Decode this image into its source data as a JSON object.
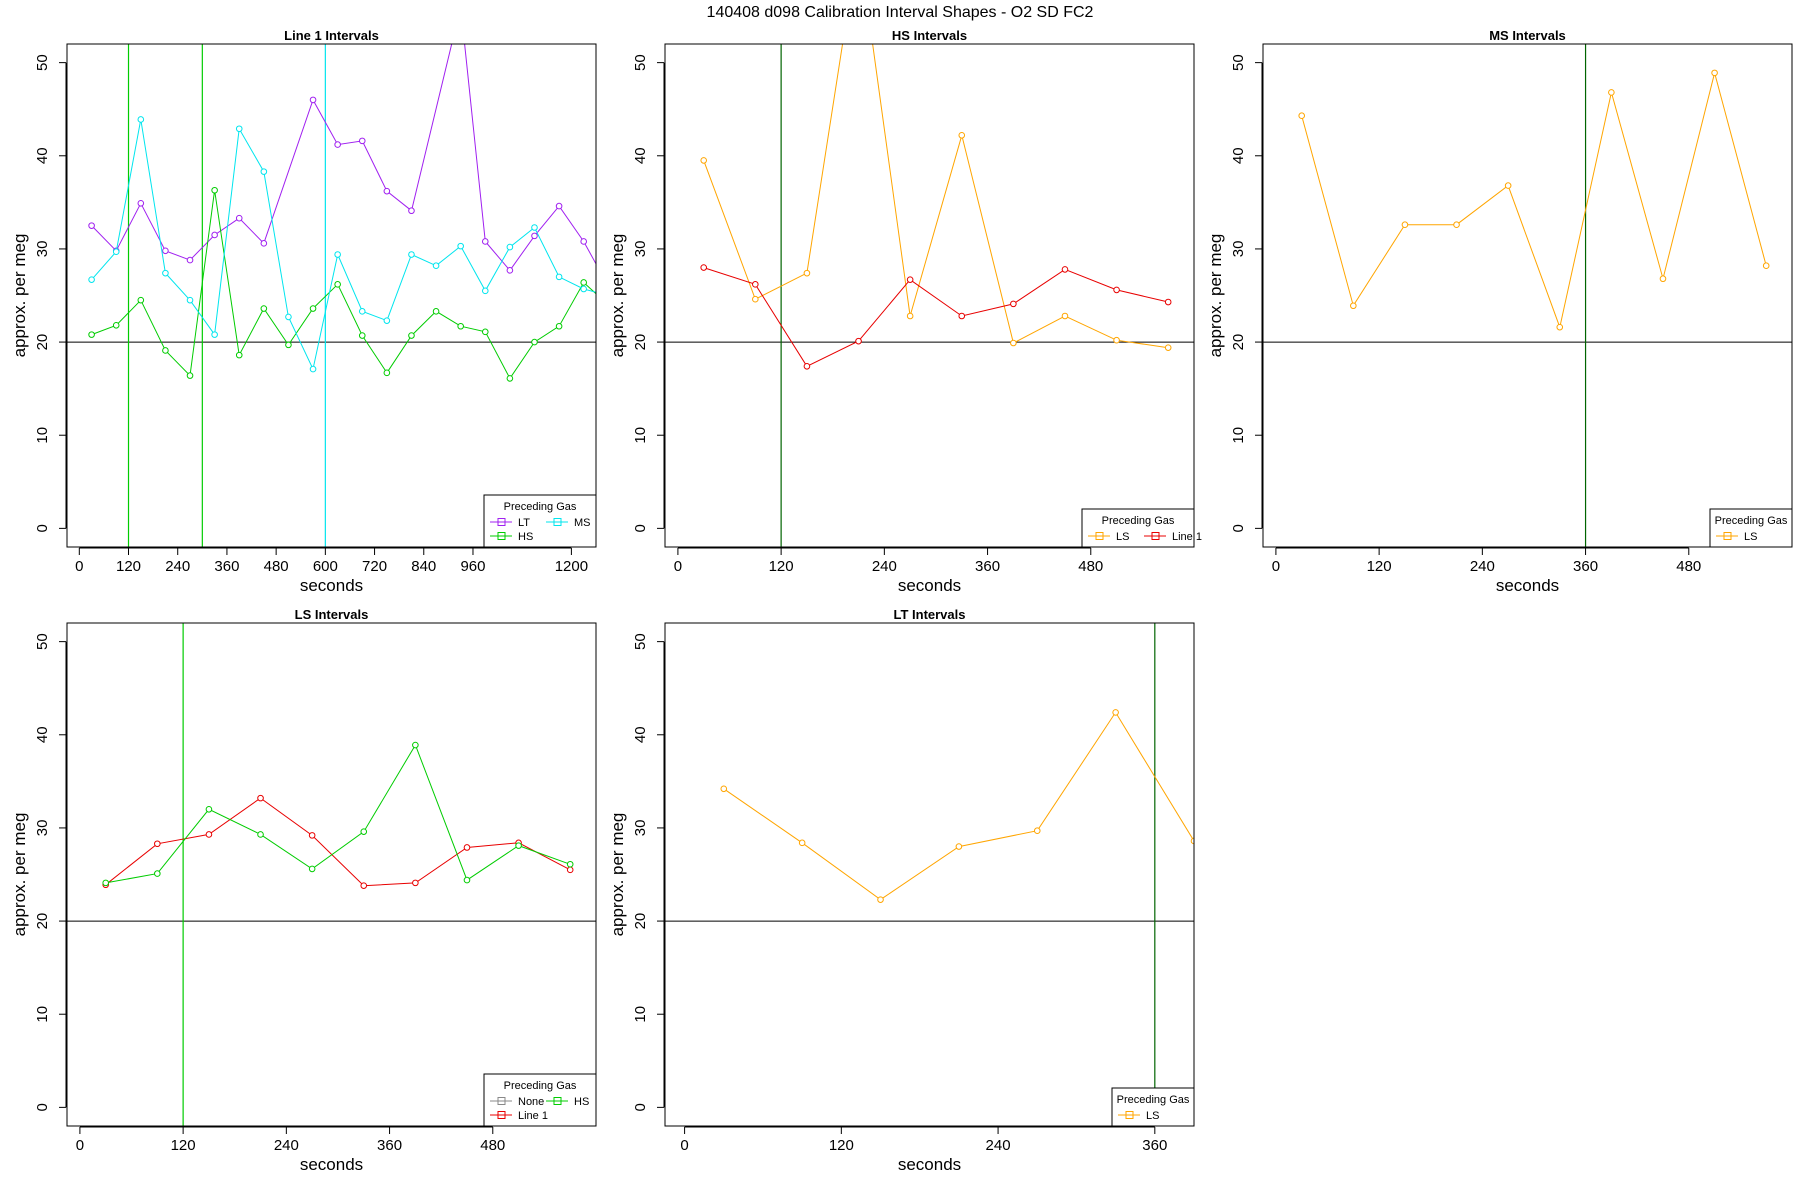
{
  "figure": {
    "title": "140408   d098   Calibration Interval Shapes - O2 SD FC2"
  },
  "colors": {
    "LT": "#A020F0",
    "HS": "#00CC00",
    "MS": "#00E5EE",
    "LS": "#FFA500",
    "Line 1": "#E80000",
    "None": "#888888",
    "vline": "#006400",
    "hline": "#000000"
  },
  "chart_data": [
    {
      "type": "line",
      "title": "Line 1 Intervals",
      "xlabel": "seconds",
      "ylabel": "approx. per meg",
      "xlim": [
        -30,
        1260
      ],
      "ylim": [
        -2,
        52
      ],
      "xticks": [
        0,
        120,
        240,
        360,
        480,
        600,
        720,
        840,
        960,
        1200
      ],
      "yticks": [
        0,
        10,
        20,
        30,
        40,
        50
      ],
      "hline": 20,
      "vlines": [
        {
          "x": 120,
          "color": "HS"
        },
        {
          "x": 300,
          "color": "HS"
        },
        {
          "x": 600,
          "color": "MS"
        }
      ],
      "legend": {
        "title": "Preceding Gas",
        "entries": [
          "LT",
          "HS",
          "MS"
        ],
        "position": "bottom-right"
      },
      "series": [
        {
          "name": "LT",
          "x": [
            30,
            90,
            150,
            210,
            270,
            330,
            390,
            450,
            570,
            630,
            690,
            750,
            810,
            930,
            990,
            1050,
            1110,
            1170,
            1230,
            1290
          ],
          "values": [
            32.5,
            29.8,
            34.9,
            29.8,
            28.8,
            31.5,
            33.3,
            30.6,
            46,
            41.2,
            41.6,
            36.2,
            34.1,
            56,
            30.8,
            27.7,
            31.4,
            34.6,
            30.8,
            26
          ]
        },
        {
          "name": "HS",
          "x": [
            30,
            90,
            150,
            210,
            270,
            330,
            390,
            450,
            510,
            570,
            630,
            690,
            750,
            810,
            870,
            930,
            990,
            1050,
            1110,
            1170,
            1230,
            1290
          ],
          "values": [
            20.8,
            21.8,
            24.5,
            19.1,
            16.4,
            36.3,
            18.6,
            23.6,
            19.7,
            23.6,
            26.2,
            20.7,
            16.7,
            20.7,
            23.3,
            21.7,
            21.1,
            16.1,
            20.0,
            21.7,
            26.4,
            24
          ]
        },
        {
          "name": "MS",
          "x": [
            30,
            90,
            150,
            210,
            270,
            330,
            390,
            450,
            510,
            570,
            630,
            690,
            750,
            810,
            870,
            930,
            990,
            1050,
            1110,
            1170,
            1230,
            1290
          ],
          "values": [
            26.7,
            29.7,
            43.9,
            27.4,
            24.5,
            20.8,
            42.9,
            38.3,
            22.7,
            17.1,
            29.4,
            23.3,
            22.3,
            29.4,
            28.2,
            30.3,
            25.5,
            30.2,
            32.3,
            27.0,
            25.7,
            25
          ]
        }
      ]
    },
    {
      "type": "line",
      "title": "HS Intervals",
      "xlabel": "seconds",
      "ylabel": "approx. per meg",
      "xlim": [
        -15,
        600
      ],
      "ylim": [
        -2,
        52
      ],
      "xticks": [
        0,
        120,
        240,
        360,
        480
      ],
      "yticks": [
        0,
        10,
        20,
        30,
        40,
        50
      ],
      "hline": 20,
      "vlines": [
        {
          "x": 120,
          "color": "vline"
        }
      ],
      "legend": {
        "title": "Preceding Gas",
        "entries": [
          "LS",
          "Line 1"
        ],
        "position": "bottom-right"
      },
      "series": [
        {
          "name": "LS",
          "x": [
            30,
            90,
            150,
            210,
            270,
            330,
            390,
            450,
            510,
            570
          ],
          "values": [
            39.5,
            24.6,
            27.4,
            63,
            22.8,
            42.2,
            19.9,
            22.8,
            20.2,
            19.4
          ]
        },
        {
          "name": "Line 1",
          "x": [
            30,
            90,
            150,
            210,
            270,
            330,
            390,
            450,
            510,
            570
          ],
          "values": [
            28.0,
            26.2,
            17.4,
            20.1,
            26.7,
            22.8,
            24.1,
            27.8,
            25.6,
            24.3
          ]
        }
      ]
    },
    {
      "type": "line",
      "title": "MS Intervals",
      "xlabel": "seconds",
      "ylabel": "approx. per meg",
      "xlim": [
        -15,
        600
      ],
      "ylim": [
        -2,
        52
      ],
      "xticks": [
        0,
        120,
        240,
        360,
        480
      ],
      "yticks": [
        0,
        10,
        20,
        30,
        40,
        50
      ],
      "hline": 20,
      "vlines": [
        {
          "x": 360,
          "color": "vline"
        }
      ],
      "legend": {
        "title": "Preceding Gas",
        "entries": [
          "LS"
        ],
        "position": "bottom-right"
      },
      "series": [
        {
          "name": "LS",
          "x": [
            30,
            90,
            150,
            210,
            270,
            330,
            390,
            450,
            510,
            570
          ],
          "values": [
            44.3,
            23.9,
            32.6,
            32.6,
            36.8,
            21.6,
            46.8,
            26.8,
            48.9,
            28.2
          ]
        }
      ]
    },
    {
      "type": "line",
      "title": "LS Intervals",
      "xlabel": "seconds",
      "ylabel": "approx. per meg",
      "xlim": [
        -15,
        600
      ],
      "ylim": [
        -2,
        52
      ],
      "xticks": [
        0,
        120,
        240,
        360,
        480
      ],
      "yticks": [
        0,
        10,
        20,
        30,
        40,
        50
      ],
      "hline": 20,
      "vlines": [
        {
          "x": 120,
          "color": "HS"
        }
      ],
      "legend": {
        "title": "Preceding Gas",
        "entries": [
          "None",
          "Line 1",
          "HS"
        ],
        "position": "bottom-right"
      },
      "series": [
        {
          "name": "Line 1",
          "x": [
            30,
            90,
            150,
            210,
            270,
            330,
            390,
            450,
            510,
            570
          ],
          "values": [
            23.9,
            28.3,
            29.3,
            33.2,
            29.2,
            23.8,
            24.1,
            27.9,
            28.4,
            25.5
          ]
        },
        {
          "name": "HS",
          "x": [
            30,
            90,
            150,
            210,
            270,
            330,
            390,
            450,
            510,
            570
          ],
          "values": [
            24.1,
            25.1,
            32.0,
            29.3,
            25.6,
            29.6,
            38.9,
            24.4,
            28.1,
            26.1
          ]
        }
      ]
    },
    {
      "type": "line",
      "title": "LT Intervals",
      "xlabel": "seconds",
      "ylabel": "approx. per meg",
      "xlim": [
        -15,
        390
      ],
      "ylim": [
        -2,
        52
      ],
      "xticks": [
        0,
        120,
        240,
        360
      ],
      "yticks": [
        0,
        10,
        20,
        30,
        40,
        50
      ],
      "hline": 20,
      "vlines": [
        {
          "x": 360,
          "color": "vline"
        }
      ],
      "legend": {
        "title": "Preceding Gas",
        "entries": [
          "LS"
        ],
        "position": "bottom-right"
      },
      "series": [
        {
          "name": "LS",
          "x": [
            30,
            90,
            150,
            210,
            270,
            330,
            390
          ],
          "values": [
            34.2,
            28.4,
            22.3,
            28.0,
            29.7,
            42.4,
            28.6
          ]
        }
      ]
    }
  ]
}
